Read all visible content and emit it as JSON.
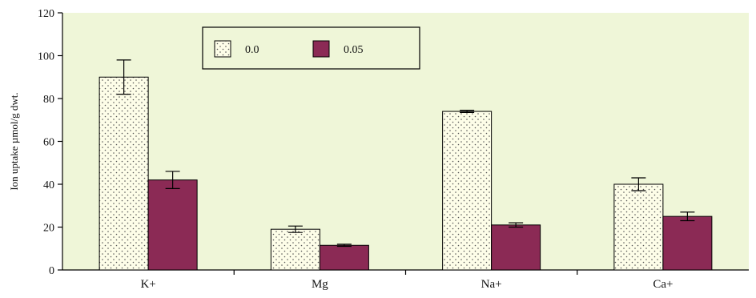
{
  "chart_data": {
    "type": "bar",
    "title": "",
    "xlabel": "",
    "ylabel": "Ion uptake µmol/g dwt.",
    "ylim": [
      0,
      120
    ],
    "yticks": [
      0,
      20,
      40,
      60,
      80,
      100,
      120
    ],
    "categories": [
      "K+",
      "Mg",
      "Na+",
      "Ca+"
    ],
    "series": [
      {
        "name": "0.0",
        "pattern": "dotted",
        "color": "#fdfde8",
        "values": [
          90,
          19,
          74,
          40
        ],
        "errors": [
          8,
          1.5,
          0.5,
          3
        ]
      },
      {
        "name": "0.05",
        "pattern": "solid",
        "color": "#8b2a55",
        "values": [
          42,
          11.5,
          21,
          25
        ],
        "errors": [
          4,
          0.5,
          1,
          2
        ]
      }
    ],
    "colors": {
      "plot_background": "#eff6d8",
      "axis": "#000000"
    },
    "grid": false,
    "legend_position": "top-center"
  }
}
